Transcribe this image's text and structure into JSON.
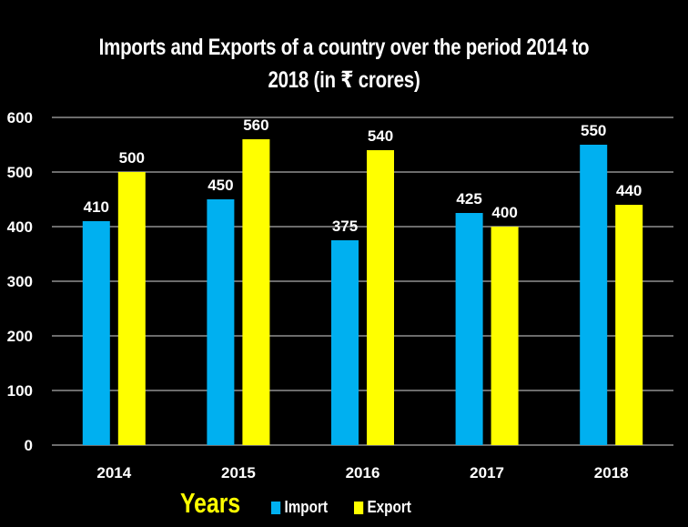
{
  "chart_data": {
    "type": "bar",
    "title": "Imports and Exports of a country over the period 2014 to 2018 (in ₹ crores)",
    "title_lines": [
      "Imports and Exports of a country over the period 2014 to",
      "2018 (in ₹ crores)"
    ],
    "xlabel": "Years",
    "ylabel": "",
    "categories": [
      "2014",
      "2015",
      "2016",
      "2017",
      "2018"
    ],
    "series": [
      {
        "name": "Import",
        "color": "#00b0f0",
        "values": [
          410,
          450,
          375,
          425,
          550
        ]
      },
      {
        "name": "Export",
        "color": "#ffff00",
        "values": [
          500,
          560,
          540,
          400,
          440
        ]
      }
    ],
    "ylim": [
      0,
      600
    ],
    "yticks": [
      0,
      100,
      200,
      300,
      400,
      500,
      600
    ],
    "grid": true,
    "legend_position": "bottom",
    "data_labels": true,
    "background": "#000000",
    "text_color": "#ffffff",
    "grid_color": "#d9d9d9"
  }
}
